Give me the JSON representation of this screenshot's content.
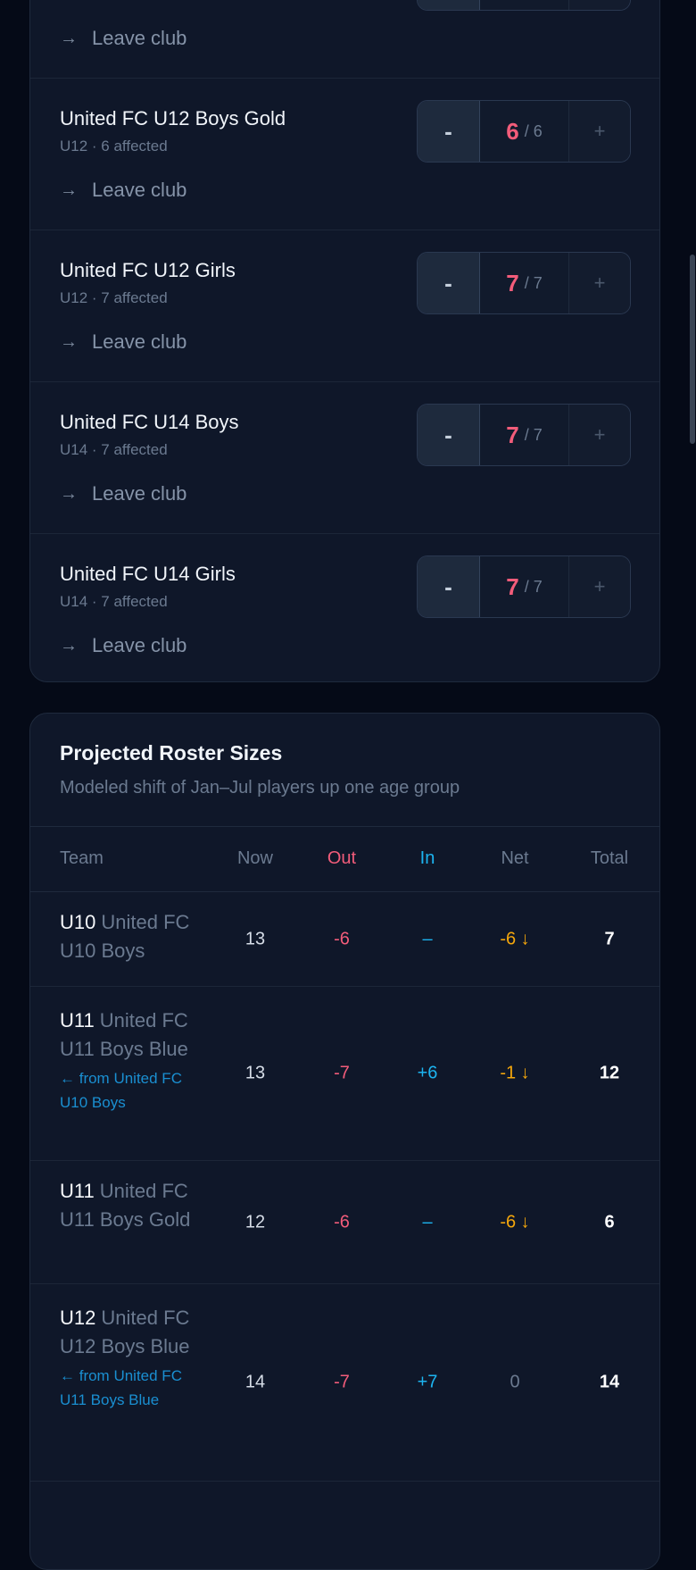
{
  "teams": [
    {
      "name": "",
      "sub": "",
      "leave": "Leave club",
      "value": "",
      "max": ""
    },
    {
      "name": "United FC U12 Boys Gold",
      "sub": "U12 · 6 affected",
      "leave": "Leave club",
      "value": "6",
      "max": "/ 6"
    },
    {
      "name": "United FC U12 Girls",
      "sub": "U12 · 7 affected",
      "leave": "Leave club",
      "value": "7",
      "max": "/ 7"
    },
    {
      "name": "United FC U14 Boys",
      "sub": "U14 · 7 affected",
      "leave": "Leave club",
      "value": "7",
      "max": "/ 7"
    },
    {
      "name": "United FC U14 Girls",
      "sub": "U14 · 7 affected",
      "leave": "Leave club",
      "value": "7",
      "max": "/ 7"
    }
  ],
  "stepper": {
    "minus": "-",
    "plus": "+"
  },
  "projected": {
    "title": "Projected Roster Sizes",
    "subtitle": "Modeled shift of Jan–Jul players up one age group",
    "headers": {
      "team": "Team",
      "now": "Now",
      "out": "Out",
      "in": "In",
      "net": "Net",
      "total": "Total"
    },
    "rows": [
      {
        "age": "U10",
        "team": "United FC U10 Boys",
        "from": "",
        "now": "13",
        "out": "-6",
        "in": "–",
        "net": "-6 ↓",
        "total": "7"
      },
      {
        "age": "U11",
        "team": "United FC U11 Boys Blue",
        "from": "← from United FC U10 Boys",
        "now": "13",
        "out": "-7",
        "in": "+6",
        "net": "-1 ↓",
        "total": "12"
      },
      {
        "age": "U11",
        "team": "United FC U11 Boys Gold",
        "from": "",
        "now": "12",
        "out": "-6",
        "in": "–",
        "net": "-6 ↓",
        "total": "6"
      },
      {
        "age": "U12",
        "team": "United FC U12 Boys Blue",
        "from": "← from United FC U11 Boys Blue",
        "now": "14",
        "out": "-7",
        "in": "+7",
        "net": "0",
        "total": "14"
      }
    ]
  },
  "colors": {
    "out": "#f25c7a",
    "in": "#1cb4f0",
    "net": "#f5a70c",
    "background": "#050a17",
    "card": "#0f1729"
  }
}
